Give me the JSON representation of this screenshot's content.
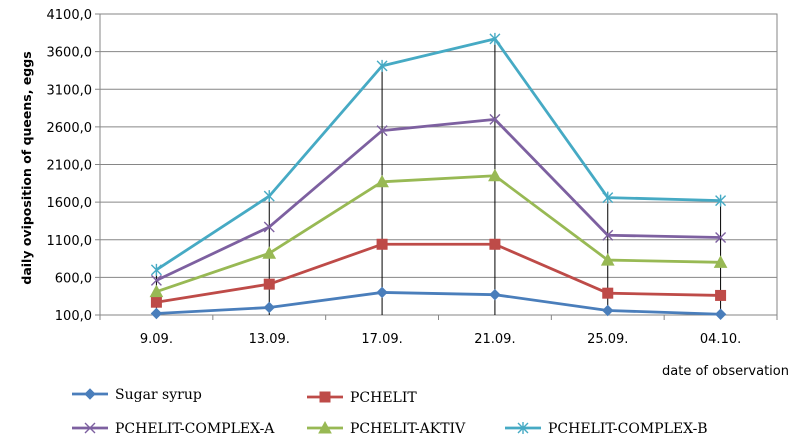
{
  "chart_data": {
    "type": "line",
    "xlabel": "date of observation",
    "ylabel": "daily oviposition of queens, eggs",
    "categories": [
      "9.09.",
      "13.09.",
      "17.09.",
      "21.09.",
      "25.09.",
      "04.10."
    ],
    "ylim": [
      100,
      4100
    ],
    "yticks": [
      "100,0",
      "600,0",
      "1100,0",
      "1600,0",
      "2100,0",
      "2600,0",
      "3100,0",
      "3600,0",
      "4100,0"
    ],
    "grid": true,
    "drop_lines": true,
    "legend_position": "bottom",
    "series": [
      {
        "name": "Sugar syrup",
        "color": "#4a7ebb",
        "marker": "diamond",
        "values": [
          120,
          200,
          400,
          370,
          160,
          110
        ]
      },
      {
        "name": "PCHELIT",
        "color": "#be4b48",
        "marker": "square",
        "values": [
          270,
          510,
          1040,
          1040,
          390,
          360
        ]
      },
      {
        "name": "PCHELIT-COMPLEX-A",
        "color": "#7d60a0",
        "marker": "x",
        "values": [
          560,
          1270,
          2550,
          2700,
          1160,
          1130
        ]
      },
      {
        "name": "PCHELIT-AKTIV",
        "color": "#98b954",
        "marker": "triangle",
        "values": [
          410,
          920,
          1870,
          1950,
          830,
          800
        ]
      },
      {
        "name": "PCHELIT-COMPLEX-B",
        "color": "#46aac4",
        "marker": "star",
        "values": [
          700,
          1680,
          3410,
          3770,
          1660,
          1620
        ]
      }
    ]
  }
}
